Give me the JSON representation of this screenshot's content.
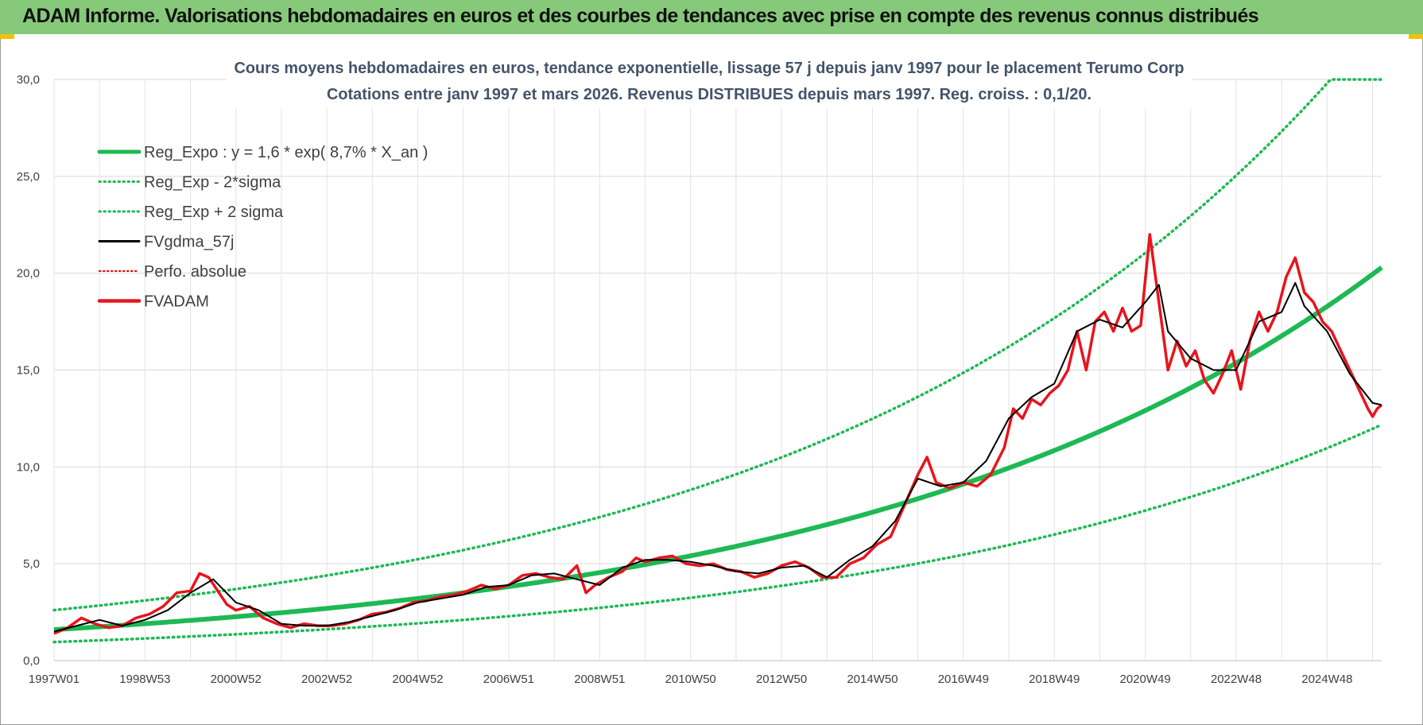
{
  "banner": {
    "title": "ADAM Informe. Valorisations hebdomadaires en euros et des courbes de tendances avec prise en compte des revenus connus distribués"
  },
  "chart_data": {
    "type": "line",
    "title": "Cours moyens hebdomadaires en euros, tendance exponentielle, lissage 57 j depuis janv 1997 pour le placement Terumo Corp",
    "subtitle": "Cotations entre janv 1997 et mars 2026. Revenus DISTRIBUES depuis mars 1997. Reg. croiss. : 0,1/20.",
    "xlabel": "",
    "ylabel": "",
    "x_ticks": [
      "1997W01",
      "1998W53",
      "2000W52",
      "2002W52",
      "2004W52",
      "2006W51",
      "2008W51",
      "2010W50",
      "2012W50",
      "2014W50",
      "2016W49",
      "2018W49",
      "2020W49",
      "2022W48",
      "2024W48"
    ],
    "xlim": [
      1997.0,
      2026.2
    ],
    "ylim": [
      0,
      30
    ],
    "y_ticks": [
      "0,0",
      "5,0",
      "10,0",
      "15,0",
      "20,0",
      "25,0",
      "30,0"
    ],
    "y_tick_values": [
      0,
      5,
      10,
      15,
      20,
      25,
      30
    ],
    "grid": true,
    "legend_position": "top-left",
    "colors": {
      "reg_expo": "#1db954",
      "sigma_bands": "#1db954",
      "fvgdma": "#000000",
      "perfo": "#e00000",
      "fvadam": "#e8141c",
      "banner": "#86c97a",
      "title_text": "#44546a"
    },
    "trend": {
      "a": 1.6,
      "rate": 0.087,
      "start_year": 1997.0,
      "band_low_factor": 0.6,
      "band_high_factor": 1.63,
      "band_cap": 30
    },
    "series": [
      {
        "name": "Reg_Expo : y = 1,6 * exp( 8,7% *  X_an )",
        "style": "thick-solid"
      },
      {
        "name": "Reg_Exp - 2*sigma",
        "style": "dotted"
      },
      {
        "name": "Reg_Exp + 2 sigma",
        "style": "dotted"
      },
      {
        "name": "FVgdma_57j",
        "style": "solid",
        "x": [
          1997.0,
          1997.5,
          1998.0,
          1998.5,
          1999.0,
          1999.5,
          2000.0,
          2000.5,
          2001.0,
          2001.5,
          2002.0,
          2002.5,
          2003.0,
          2003.5,
          2004.0,
          2004.5,
          2005.0,
          2005.5,
          2006.0,
          2006.5,
          2007.0,
          2007.5,
          2008.0,
          2008.5,
          2009.0,
          2009.5,
          2010.0,
          2010.5,
          2011.0,
          2011.5,
          2012.0,
          2012.5,
          2013.0,
          2013.5,
          2014.0,
          2014.5,
          2015.0,
          2015.5,
          2016.0,
          2016.5,
          2017.0,
          2017.5,
          2018.0,
          2018.5,
          2019.0,
          2019.5,
          2020.0,
          2020.5,
          2021.0,
          2021.3,
          2021.5,
          2022.0,
          2022.5,
          2023.0,
          2023.5,
          2024.0,
          2024.3,
          2024.5,
          2025.0,
          2025.5,
          2026.0,
          2026.2
        ],
        "values": [
          1.5,
          1.8,
          2.1,
          1.8,
          2.1,
          2.6,
          3.5,
          4.2,
          3.0,
          2.6,
          1.9,
          1.8,
          1.8,
          2.0,
          2.3,
          2.6,
          3.0,
          3.2,
          3.4,
          3.8,
          3.9,
          4.4,
          4.5,
          4.2,
          3.9,
          4.8,
          5.2,
          5.2,
          5.1,
          4.9,
          4.6,
          4.5,
          4.8,
          4.9,
          4.3,
          5.2,
          5.9,
          7.2,
          9.4,
          9.0,
          9.2,
          10.3,
          12.5,
          13.6,
          14.3,
          17.0,
          17.6,
          17.2,
          18.5,
          19.4,
          17.0,
          15.6,
          15.0,
          15.0,
          17.5,
          18.0,
          19.5,
          18.3,
          17.0,
          14.8,
          13.3,
          13.2
        ]
      },
      {
        "name": "Perfo. absolue",
        "style": "dotted"
      },
      {
        "name": "FVADAM",
        "style": "thick-solid",
        "x": [
          1997.0,
          1997.3,
          1997.6,
          1997.9,
          1998.2,
          1998.5,
          1998.8,
          1999.1,
          1999.4,
          1999.7,
          2000.0,
          2000.2,
          2000.4,
          2000.6,
          2000.8,
          2001.0,
          2001.3,
          2001.6,
          2001.9,
          2002.2,
          2002.5,
          2002.8,
          2003.1,
          2003.4,
          2003.7,
          2004.0,
          2004.3,
          2004.6,
          2004.9,
          2005.2,
          2005.5,
          2005.8,
          2006.1,
          2006.4,
          2006.7,
          2007.0,
          2007.3,
          2007.6,
          2007.9,
          2008.2,
          2008.5,
          2008.7,
          2008.9,
          2009.2,
          2009.5,
          2009.8,
          2010.0,
          2010.3,
          2010.6,
          2010.9,
          2011.2,
          2011.5,
          2011.8,
          2012.1,
          2012.4,
          2012.7,
          2013.0,
          2013.3,
          2013.6,
          2013.9,
          2014.2,
          2014.5,
          2014.8,
          2015.1,
          2015.4,
          2015.7,
          2016.0,
          2016.2,
          2016.4,
          2016.7,
          2017.0,
          2017.3,
          2017.6,
          2017.9,
          2018.1,
          2018.3,
          2018.5,
          2018.7,
          2018.9,
          2019.1,
          2019.3,
          2019.5,
          2019.7,
          2019.9,
          2020.1,
          2020.3,
          2020.5,
          2020.7,
          2020.9,
          2021.1,
          2021.3,
          2021.5,
          2021.7,
          2021.9,
          2022.1,
          2022.3,
          2022.5,
          2022.7,
          2022.9,
          2023.1,
          2023.3,
          2023.5,
          2023.7,
          2023.9,
          2024.1,
          2024.3,
          2024.5,
          2024.7,
          2024.9,
          2025.1,
          2025.3,
          2025.5,
          2025.7,
          2025.9,
          2026.0,
          2026.1,
          2026.2
        ],
        "values": [
          1.4,
          1.7,
          2.2,
          1.9,
          1.7,
          1.8,
          2.2,
          2.4,
          2.8,
          3.5,
          3.6,
          4.5,
          4.3,
          3.6,
          2.9,
          2.6,
          2.8,
          2.2,
          1.9,
          1.7,
          1.9,
          1.8,
          1.8,
          1.9,
          2.1,
          2.4,
          2.5,
          2.7,
          3.0,
          3.1,
          3.3,
          3.4,
          3.6,
          3.9,
          3.7,
          3.9,
          4.4,
          4.5,
          4.3,
          4.2,
          4.9,
          3.5,
          3.9,
          4.3,
          4.6,
          5.3,
          5.1,
          5.3,
          5.4,
          5.0,
          4.9,
          5.0,
          4.7,
          4.6,
          4.3,
          4.5,
          4.9,
          5.1,
          4.8,
          4.3,
          4.3,
          5.0,
          5.3,
          6.0,
          6.4,
          8.0,
          9.6,
          10.5,
          9.2,
          8.9,
          9.2,
          9.0,
          9.6,
          11.0,
          13.0,
          12.5,
          13.5,
          13.2,
          13.8,
          14.2,
          15.0,
          17.0,
          15.0,
          17.5,
          18.0,
          17.0,
          18.2,
          17.0,
          17.3,
          22.0,
          18.5,
          15.0,
          16.5,
          15.2,
          16.0,
          14.5,
          13.8,
          14.8,
          16.0,
          14.0,
          16.5,
          18.0,
          17.0,
          18.0,
          19.8,
          20.8,
          19.0,
          18.5,
          17.5,
          17.0,
          16.0,
          15.0,
          14.0,
          13.0,
          12.6,
          13.0,
          13.2
        ]
      }
    ]
  }
}
